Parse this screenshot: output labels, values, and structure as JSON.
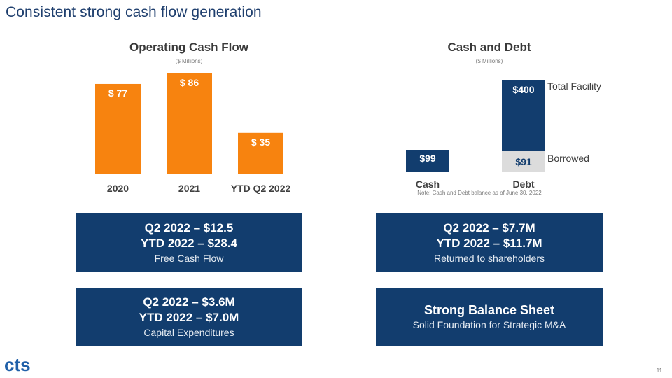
{
  "title": "Consistent strong cash flow generation",
  "page_number": "11",
  "logo_text": "cts",
  "colors": {
    "orange": "#f7830f",
    "navy": "#123d6e",
    "gray": "#dcdcdc",
    "title": "#1f3f6e"
  },
  "chart_data": [
    {
      "type": "bar",
      "title": "Operating Cash Flow",
      "subtitle": "($ Millions)",
      "categories": [
        "2020",
        "2021",
        "YTD Q2 2022"
      ],
      "values": [
        77,
        86,
        35
      ],
      "data_labels": [
        "$ 77",
        "$ 86",
        "$ 35"
      ],
      "ylim": [
        0,
        86
      ]
    },
    {
      "type": "bar",
      "title": "Cash and Debt",
      "subtitle": "($ Millions)",
      "categories": [
        "Cash",
        "Debt"
      ],
      "stacked": true,
      "bars": [
        {
          "category": "Cash",
          "segments": [
            {
              "value": 99,
              "label": "$99"
            }
          ]
        },
        {
          "category": "Debt",
          "segments": [
            {
              "value": 91,
              "label": "$91",
              "name": "Borrowed"
            },
            {
              "value": 400,
              "label": "$400",
              "name": "Total Facility",
              "is_total": true
            }
          ]
        }
      ],
      "side_labels": {
        "total": "Total Facility",
        "borrowed": "Borrowed"
      },
      "note": "Note: Cash and Debt balance as of June 30, 2022"
    }
  ],
  "boxes": [
    {
      "l1": "Q2 2022 – $12.5",
      "l2": "YTD 2022 – $28.4",
      "l3": "Free Cash Flow"
    },
    {
      "l1": "Q2 2022 – $7.7M",
      "l2": "YTD 2022 – $11.7M",
      "l3": "Returned to shareholders"
    },
    {
      "l1": "Q2 2022 – $3.6M",
      "l2": "YTD 2022 – $7.0M",
      "l3": "Capital Expenditures"
    },
    {
      "l1": "Strong Balance Sheet",
      "l3": "Solid Foundation for Strategic M&A"
    }
  ]
}
